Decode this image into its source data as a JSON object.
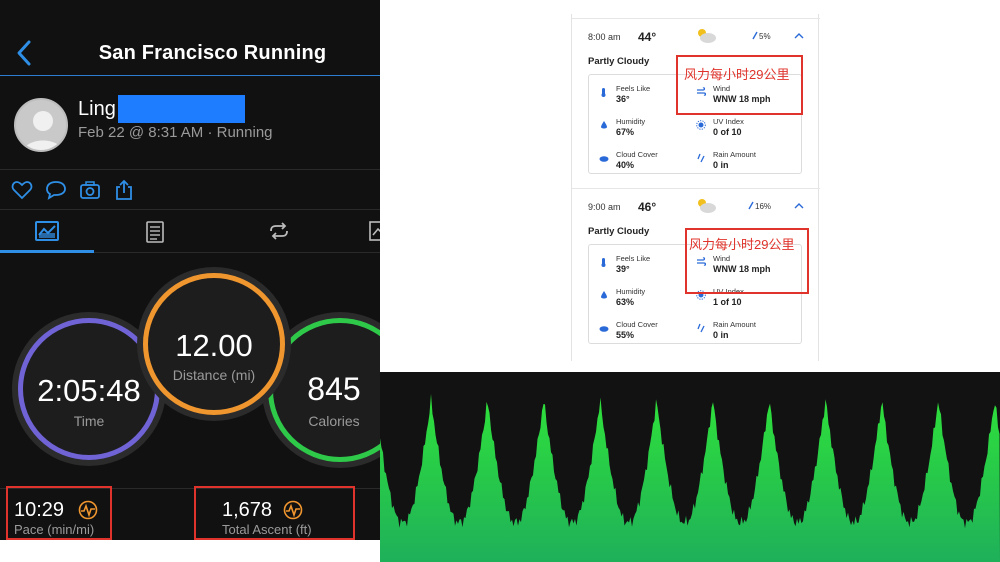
{
  "app": {
    "title": "San Francisco Running",
    "user_name": "Ling·",
    "meta": "Feb 22 @ 8:31 AM · Running",
    "rings": {
      "time": {
        "value": "2:05:48",
        "label": "Time"
      },
      "distance": {
        "value": "12.00",
        "label": "Distance (mi)"
      },
      "calories": {
        "value": "845",
        "label": "Calories"
      }
    },
    "stats": {
      "pace": {
        "value": "10:29",
        "label": "Pace (min/mi)"
      },
      "ascent": {
        "value": "1,678",
        "label": "Total Ascent (ft)"
      }
    },
    "colors": {
      "accent": "#2f8fe6",
      "time_ring": "#6f63d6",
      "distance_ring": "#f0962f",
      "calories_ring": "#2fc94a",
      "highlight": "#e0332b"
    }
  },
  "weather": {
    "hours": [
      {
        "time": "8:00 am",
        "temp": "44°",
        "precip": "5%",
        "condition": "Partly Cloudy",
        "feels_like": {
          "label": "Feels Like",
          "value": "36°"
        },
        "wind": {
          "label": "Wind",
          "value": "WNW 18 mph"
        },
        "humidity": {
          "label": "Humidity",
          "value": "67%"
        },
        "uv": {
          "label": "UV Index",
          "value": "0 of 10"
        },
        "cloud": {
          "label": "Cloud Cover",
          "value": "40%"
        },
        "rain": {
          "label": "Rain Amount",
          "value": "0 in"
        }
      },
      {
        "time": "9:00 am",
        "temp": "46°",
        "precip": "16%",
        "condition": "Partly Cloudy",
        "feels_like": {
          "label": "Feels Like",
          "value": "39°"
        },
        "wind": {
          "label": "Wind",
          "value": "WNW 18 mph"
        },
        "humidity": {
          "label": "Humidity",
          "value": "63%"
        },
        "uv": {
          "label": "UV Index",
          "value": "1 of 10"
        },
        "cloud": {
          "label": "Cloud Cover",
          "value": "55%"
        },
        "rain": {
          "label": "Rain Amount",
          "value": "0 in"
        }
      }
    ],
    "annotations": [
      "风力每小时29公里",
      "风力每小时29公里"
    ]
  },
  "waveform": {
    "peaks": 11,
    "color_top": "#2fe13a",
    "color_bottom": "#1fb05a"
  }
}
